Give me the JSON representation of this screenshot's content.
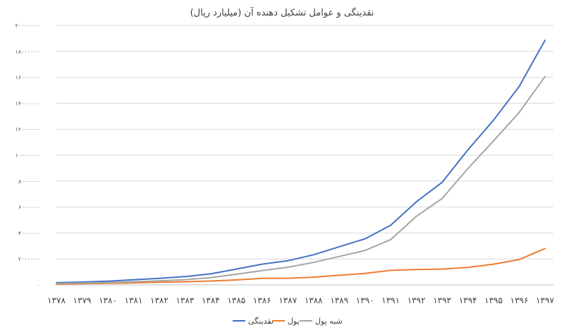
{
  "chart_data": {
    "type": "line",
    "title": "نقدینگی و عوامل تشکیل دهنده آن (میلیارد ریال)",
    "xlabel": "",
    "ylabel": "",
    "categories": [
      "۱۳۷۸",
      "۱۳۷۹",
      "۱۳۸۰",
      "۱۳۸۱",
      "۱۳۸۲",
      "۱۳۸۳",
      "۱۳۸۴",
      "۱۳۸۵",
      "۱۳۸۶",
      "۱۳۸۷",
      "۱۳۸۸",
      "۱۳۸۹",
      "۱۳۹۰",
      "۱۳۹۱",
      "۱۳۹۲",
      "۱۳۹۳",
      "۱۳۹۴",
      "۱۳۹۵",
      "۱۳۹۶",
      "۱۳۹۷"
    ],
    "ylim": [
      0,
      20000000
    ],
    "yticks": [
      0,
      2000000,
      4000000,
      6000000,
      8000000,
      10000000,
      12000000,
      14000000,
      16000000,
      18000000,
      20000000
    ],
    "ytick_labels": [
      "۰",
      "۲۰۰۰۰۰۰",
      "۴۰۰۰۰۰۰",
      "۶۰۰۰۰۰۰",
      "۸۰۰۰۰۰۰",
      "۱۰۰۰۰۰۰۰",
      "۱۲۰۰۰۰۰۰",
      "۱۴۰۰۰۰۰۰",
      "۱۶۰۰۰۰۰۰",
      "۱۸۰۰۰۰۰۰",
      "۲۰۰۰۰۰۰۰"
    ],
    "grid": true,
    "legend_position": "bottom",
    "series": [
      {
        "name": "نقدینگی",
        "color": "#4472c4",
        "values": [
          170000,
          220000,
          290000,
          390000,
          500000,
          640000,
          850000,
          1220000,
          1600000,
          1860000,
          2320000,
          2940000,
          3550000,
          4600000,
          6400000,
          7900000,
          10400000,
          12700000,
          15300000,
          18850000
        ]
      },
      {
        "name": "پول",
        "color": "#ed7d31",
        "values": [
          60000,
          90000,
          120000,
          160000,
          200000,
          240000,
          300000,
          380000,
          500000,
          510000,
          590000,
          740000,
          880000,
          1120000,
          1180000,
          1220000,
          1350000,
          1600000,
          1950000,
          2800000
        ]
      },
      {
        "name": "شبه پول",
        "color": "#a5a5a5",
        "values": [
          110000,
          140000,
          180000,
          240000,
          310000,
          400000,
          560000,
          820000,
          1100000,
          1360000,
          1730000,
          2190000,
          2650000,
          3490000,
          5280000,
          6650000,
          8960000,
          11100000,
          13300000,
          16050000
        ]
      }
    ]
  }
}
